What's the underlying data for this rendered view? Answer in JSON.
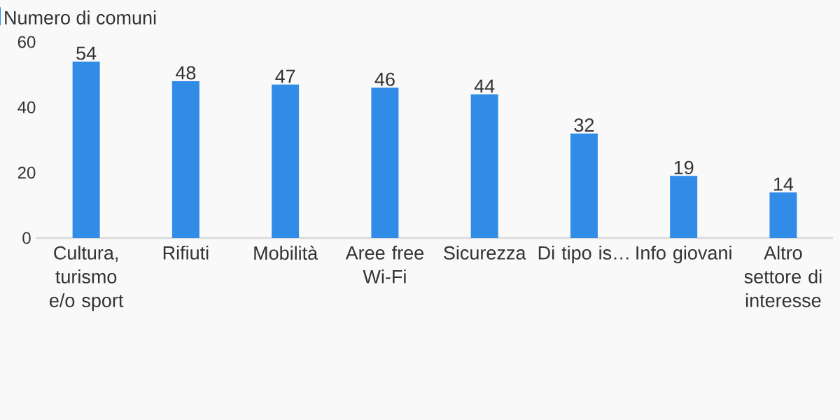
{
  "chart_data": {
    "type": "bar",
    "categories": [
      "Cultura, turismo e/o sport",
      "Rifiuti",
      "Mobilità",
      "Aree free Wi-Fi",
      "Sicurezza",
      "Di tipo is…",
      "Info giovani",
      "Altro settore di interesse"
    ],
    "series": [
      {
        "name": "Numero di comuni",
        "color": "#318ce7",
        "values": [
          54,
          48,
          47,
          46,
          44,
          32,
          19,
          14
        ]
      }
    ],
    "ylim": [
      0,
      60
    ],
    "yticks": [
      0,
      20,
      40,
      60
    ],
    "grid": false,
    "legend": "top left",
    "data_labels": true
  }
}
